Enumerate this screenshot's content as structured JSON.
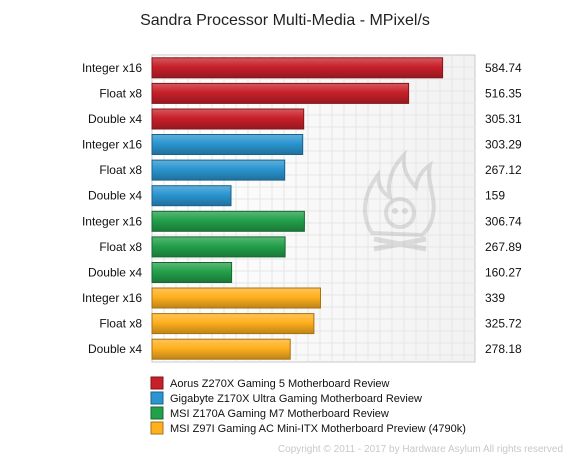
{
  "chart_data": {
    "type": "bar",
    "orientation": "horizontal",
    "title": "Sandra Processor Multi-Media - MPixel/s",
    "categories": [
      "Integer x16",
      "Float x8",
      "Double x4",
      "Integer x16",
      "Float x8",
      "Double x4",
      "Integer x16",
      "Float x8",
      "Double x4",
      "Integer x16",
      "Float x8",
      "Double x4"
    ],
    "value_labels": [
      "584.74",
      "516.35",
      "305.31",
      "303.29",
      "267.12",
      "159",
      "306.74",
      "267.89",
      "160.27",
      "339",
      "325.72",
      "278.18"
    ],
    "bars": [
      {
        "category": "Integer x16",
        "value": 584.74,
        "series": 0
      },
      {
        "category": "Float x8",
        "value": 516.35,
        "series": 0
      },
      {
        "category": "Double x4",
        "value": 305.31,
        "series": 0
      },
      {
        "category": "Integer x16",
        "value": 303.29,
        "series": 1
      },
      {
        "category": "Float x8",
        "value": 267.12,
        "series": 1
      },
      {
        "category": "Double x4",
        "value": 159,
        "series": 1
      },
      {
        "category": "Integer x16",
        "value": 306.74,
        "series": 2
      },
      {
        "category": "Float x8",
        "value": 267.89,
        "series": 2
      },
      {
        "category": "Double x4",
        "value": 160.27,
        "series": 2
      },
      {
        "category": "Integer x16",
        "value": 339,
        "series": 3
      },
      {
        "category": "Float x8",
        "value": 325.72,
        "series": 3
      },
      {
        "category": "Double x4",
        "value": 278.18,
        "series": 3
      }
    ],
    "series": [
      {
        "name": "Aorus Z270X Gaming 5 Motherboard Review",
        "color": "#c8202a"
      },
      {
        "name": "Gigabyte Z170X Ultra Gaming Motherboard Review",
        "color": "#2a95d0"
      },
      {
        "name": "MSI Z170A Gaming M7 Motherboard Review",
        "color": "#23a04a"
      },
      {
        "name": "MSI Z97I Gaming AC Mini-ITX Motherboard Preview (4790k)",
        "color": "#ffb01f"
      }
    ],
    "xlim": [
      0,
      650
    ],
    "grid": true,
    "legend_position": "bottom-left"
  },
  "footer": {
    "copyright": "Copyright © 2011 - 2017 by Hardware Asylum All rights reserved"
  },
  "watermark_icon": "flame-skull-icon"
}
